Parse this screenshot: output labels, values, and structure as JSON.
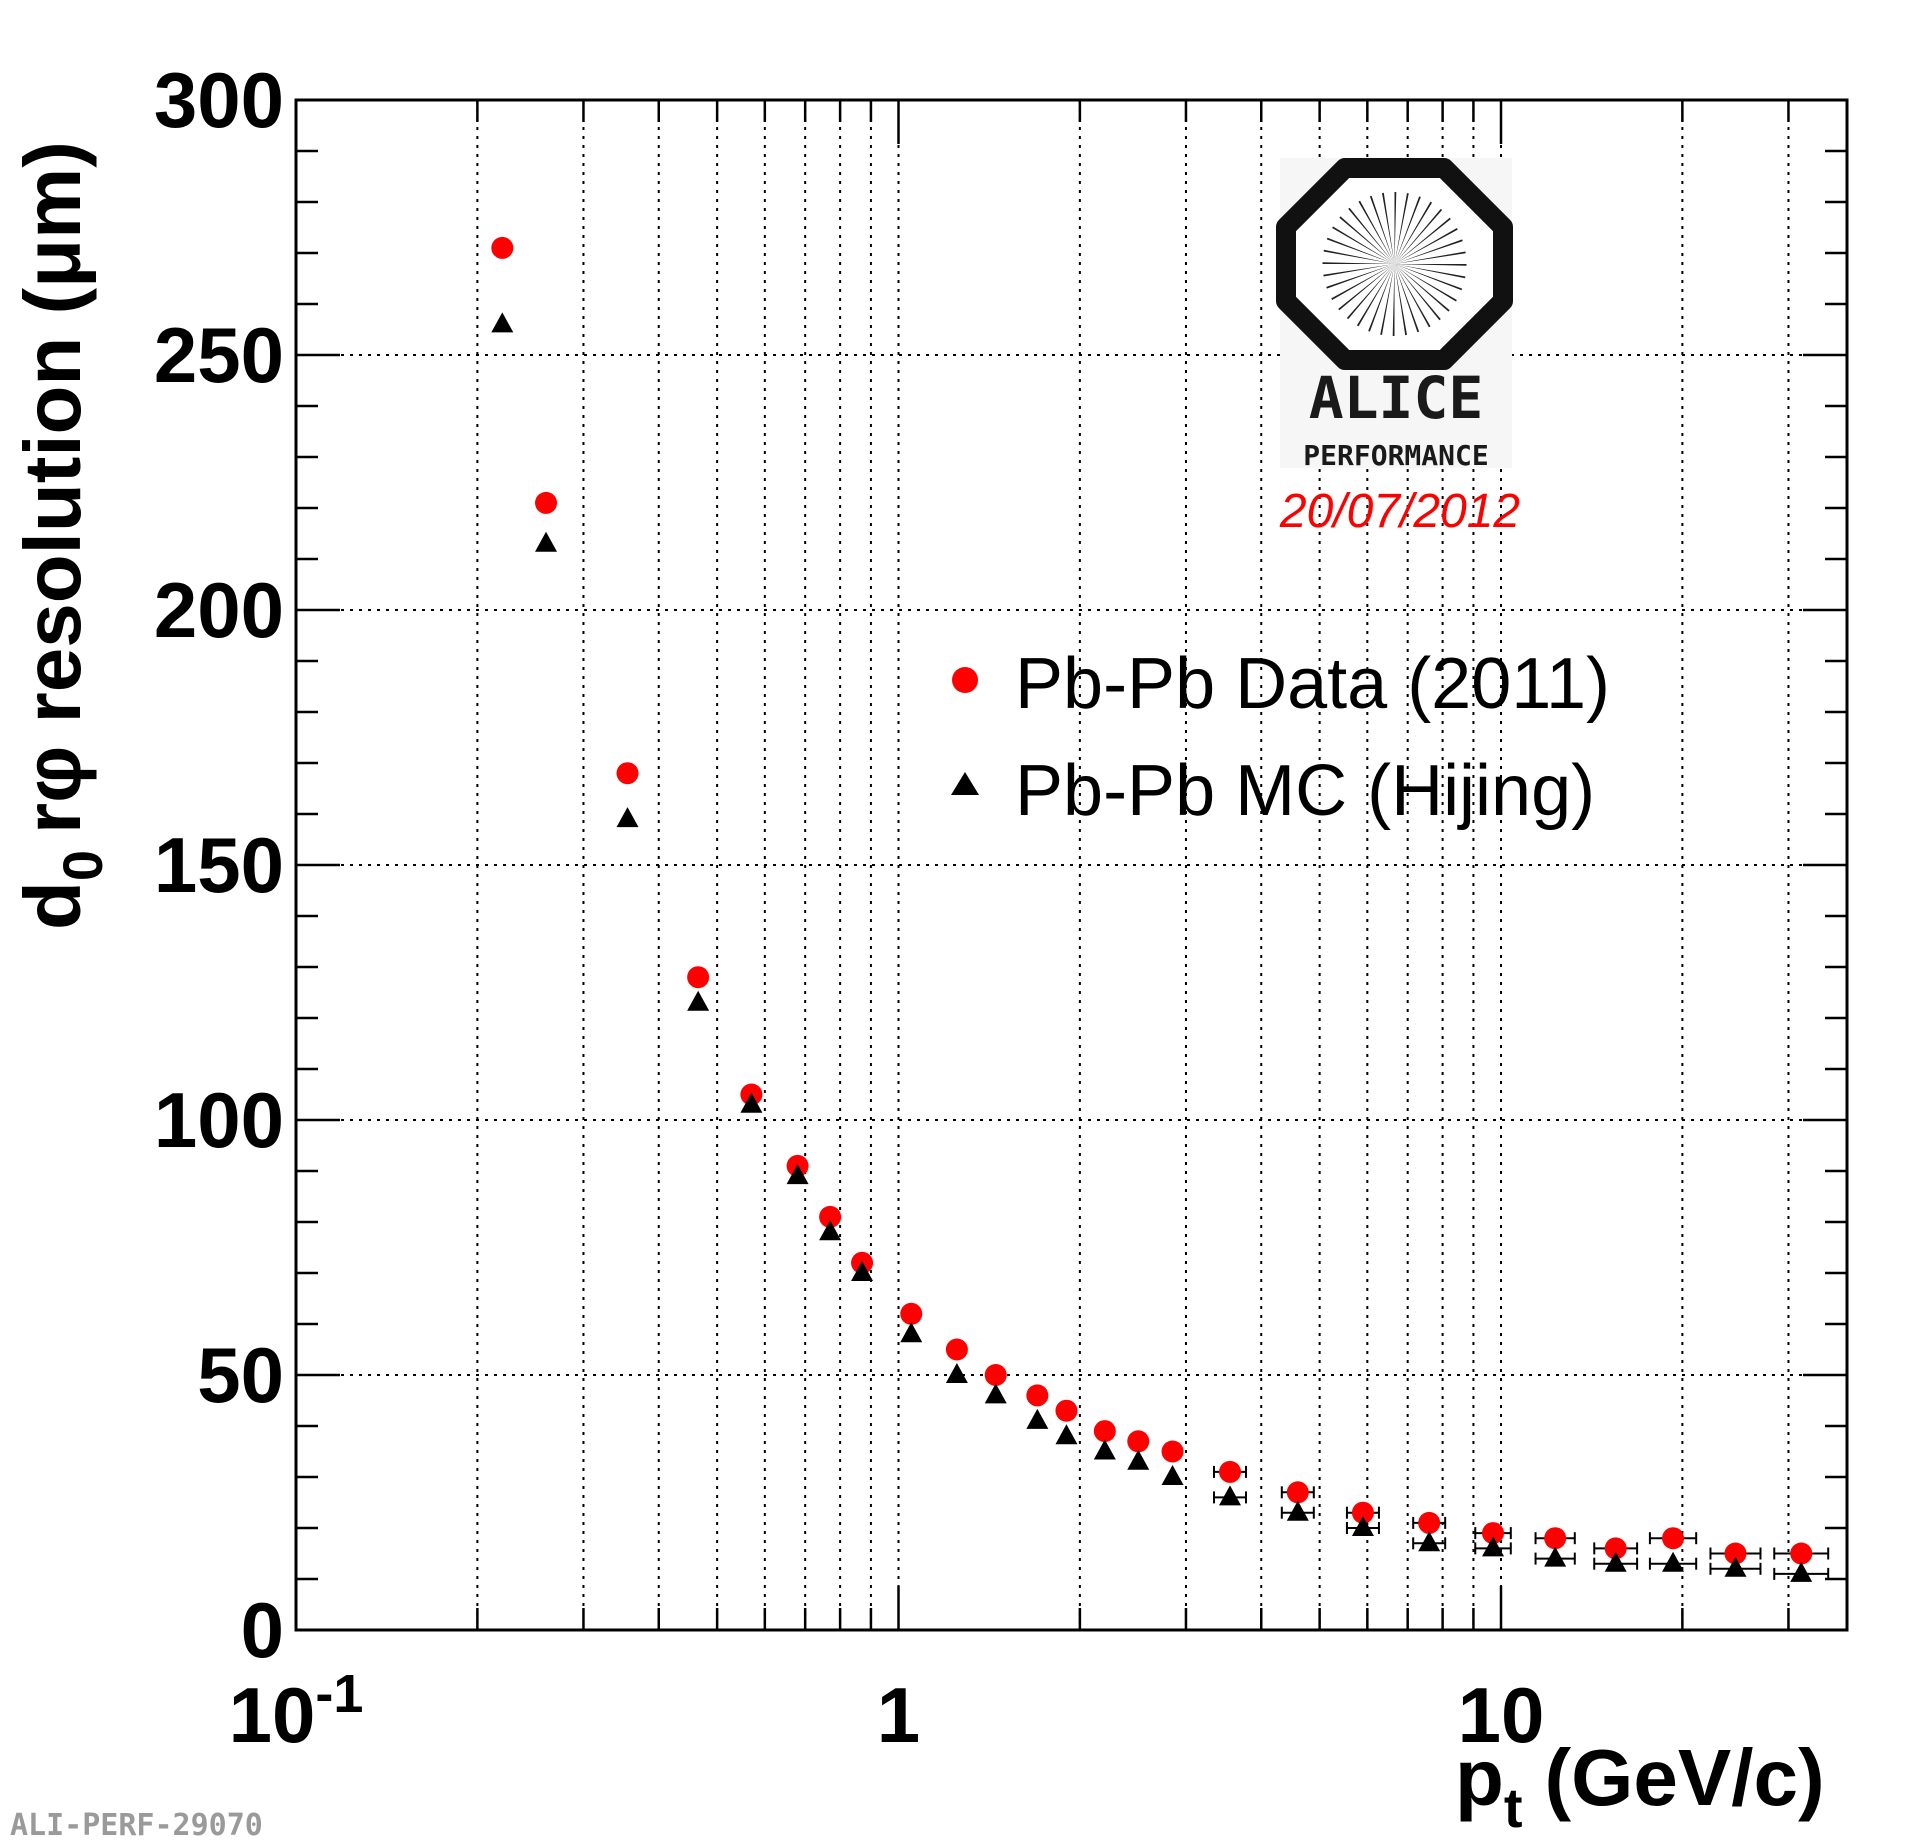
{
  "chart_data": {
    "type": "scatter",
    "x_scale": "log",
    "xlim": [
      0.1,
      40
    ],
    "ylim": [
      0,
      300
    ],
    "grid": true,
    "xlabel_main": "p",
    "xlabel_sub": "t",
    "xlabel_unit": "(GeV/c)",
    "ylabel_main": "d",
    "ylabel_sub": "0",
    "ylabel_rest": "rφ resolution (μm)",
    "x_ticks": [
      {
        "value": 0.1,
        "base": "10",
        "exp": "-1"
      },
      {
        "value": 1,
        "base": "1",
        "exp": ""
      },
      {
        "value": 10,
        "base": "10",
        "exp": ""
      }
    ],
    "y_ticks": [
      "0",
      "50",
      "100",
      "150",
      "200",
      "250",
      "300"
    ],
    "legend_position": "right",
    "series": [
      {
        "name": "Pb-Pb Data (2011)",
        "marker": "circle",
        "color": "#ff0000",
        "x": [
          0.22,
          0.26,
          0.355,
          0.465,
          0.57,
          0.68,
          0.77,
          0.87,
          1.05,
          1.25,
          1.45,
          1.7,
          1.9,
          2.2,
          2.5,
          2.85,
          3.55,
          4.6,
          5.9,
          7.6,
          9.7,
          12.3,
          15.5,
          19.3,
          24.5,
          31.5
        ],
        "y": [
          271,
          221,
          168,
          128,
          105,
          91,
          81,
          72,
          62,
          55,
          50,
          46,
          43,
          39,
          37,
          35,
          31,
          27,
          23,
          21,
          19,
          18,
          16,
          18,
          15,
          15
        ]
      },
      {
        "name": "Pb-Pb MC (Hijing)",
        "marker": "triangle",
        "color": "#000000",
        "x": [
          0.22,
          0.26,
          0.355,
          0.465,
          0.57,
          0.68,
          0.77,
          0.87,
          1.05,
          1.25,
          1.45,
          1.7,
          1.9,
          2.2,
          2.5,
          2.85,
          3.55,
          4.6,
          5.9,
          7.6,
          9.7,
          12.3,
          15.5,
          19.3,
          24.5,
          31.5
        ],
        "y": [
          256,
          213,
          159,
          123,
          103,
          89,
          78,
          70,
          58,
          50,
          46,
          41,
          38,
          35,
          33,
          30,
          26,
          23,
          20,
          17,
          16,
          14,
          13,
          13,
          12,
          11
        ]
      }
    ]
  },
  "logo": {
    "name": "ALICE",
    "subtitle": "PERFORMANCE",
    "date": "20/07/2012",
    "icon": "alice-octagon-logo"
  },
  "footer": {
    "id": "ALI-PERF-29070"
  }
}
